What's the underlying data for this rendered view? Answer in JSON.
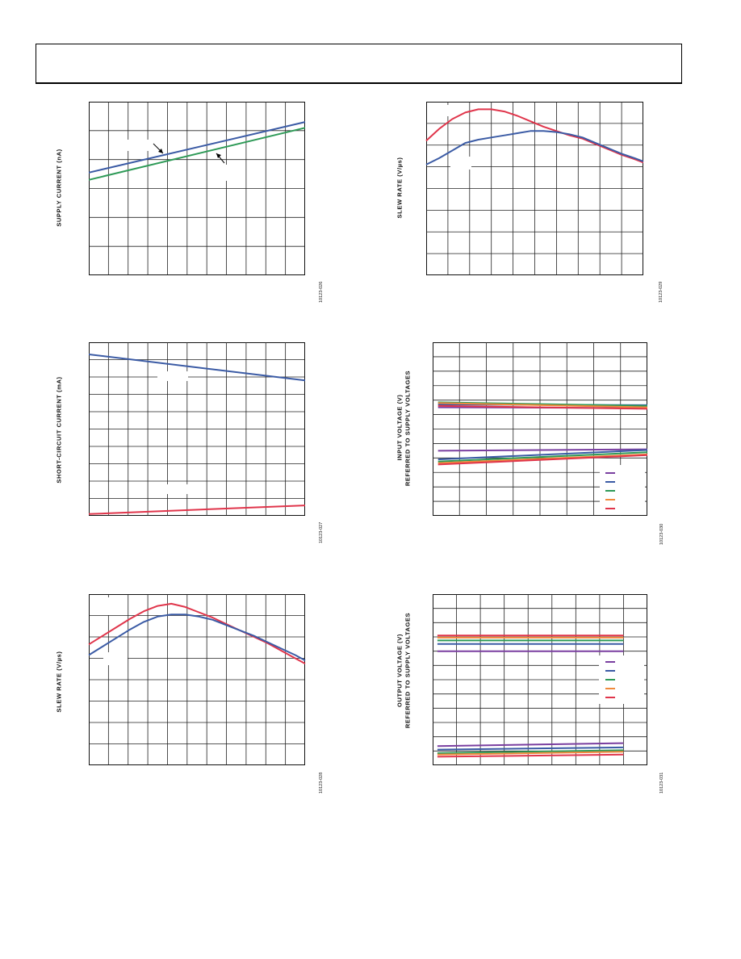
{
  "chart_data": [
    {
      "id": "c1",
      "type": "line",
      "ylabel": "SUPPLY CURRENT (nA)",
      "figure_id": "10123-026",
      "xlim": [
        0,
        11
      ],
      "ylim": [
        0,
        6
      ],
      "series": [
        {
          "color": "#3b5ba5",
          "x": [
            0,
            11
          ],
          "y": [
            3.55,
            5.3
          ]
        },
        {
          "color": "#2e9a57",
          "x": [
            0,
            11
          ],
          "y": [
            3.3,
            5.1
          ]
        }
      ]
    },
    {
      "id": "c2",
      "type": "line",
      "ylabel": "SLEW RATE (V/µs)",
      "figure_id": "10123-029",
      "xlim": [
        0,
        10
      ],
      "ylim": [
        0,
        8
      ],
      "series": [
        {
          "color": "#e0354b",
          "x": [
            0,
            0.6,
            1.2,
            1.8,
            2.4,
            3,
            3.6,
            4.2,
            4.8,
            5.4,
            6,
            6.6,
            7.2,
            7.8,
            8.4,
            9,
            9.6,
            10
          ],
          "y": [
            6.2,
            6.75,
            7.2,
            7.5,
            7.65,
            7.65,
            7.55,
            7.35,
            7.1,
            6.85,
            6.65,
            6.45,
            6.3,
            6.05,
            5.8,
            5.55,
            5.35,
            5.2
          ]
        },
        {
          "color": "#3b5ba5",
          "x": [
            0,
            0.6,
            1.2,
            1.8,
            2.4,
            3,
            3.6,
            4.2,
            4.8,
            5.4,
            6,
            6.6,
            7.2,
            7.8,
            8.4,
            9,
            9.6,
            10
          ],
          "y": [
            5.1,
            5.4,
            5.75,
            6.1,
            6.25,
            6.35,
            6.45,
            6.55,
            6.65,
            6.65,
            6.6,
            6.5,
            6.35,
            6.1,
            5.85,
            5.6,
            5.4,
            5.25
          ]
        }
      ]
    },
    {
      "id": "c3",
      "type": "line",
      "ylabel": "SHORT-CIRCUIT CURRENT (mA)",
      "figure_id": "10123-027",
      "xlim": [
        0,
        11
      ],
      "ylim": [
        0,
        10
      ],
      "series": [
        {
          "color": "#3b5ba5",
          "x": [
            0,
            11
          ],
          "y": [
            9.3,
            7.8
          ]
        },
        {
          "color": "#e0354b",
          "x": [
            0,
            11
          ],
          "y": [
            0.1,
            0.6
          ]
        }
      ]
    },
    {
      "id": "c4",
      "type": "line",
      "ylabel": "INPUT VOLTAGE (V)",
      "ylabel2": "REFERRED TO SUPPLY VOLTAGES",
      "figure_id": "10123-030",
      "xlim": [
        0,
        8
      ],
      "ylim": [
        0,
        12
      ],
      "series": [
        {
          "color": "#7a3fa0",
          "x": [
            0.2,
            8
          ],
          "y": [
            7.5,
            7.45
          ]
        },
        {
          "color": "#3b5ba5",
          "x": [
            0.2,
            8
          ],
          "y": [
            7.7,
            7.65
          ]
        },
        {
          "color": "#2e9a57",
          "x": [
            0.2,
            8
          ],
          "y": [
            7.85,
            7.6
          ]
        },
        {
          "color": "#f08a3c",
          "x": [
            0.2,
            8
          ],
          "y": [
            7.8,
            7.5
          ]
        },
        {
          "color": "#e0354b",
          "x": [
            0.2,
            8
          ],
          "y": [
            7.6,
            7.4
          ]
        },
        {
          "color": "#7a3fa0",
          "x": [
            0.2,
            8
          ],
          "y": [
            4.5,
            4.6
          ]
        },
        {
          "color": "#3b5ba5",
          "x": [
            0.2,
            8
          ],
          "y": [
            3.9,
            4.55
          ]
        },
        {
          "color": "#2e9a57",
          "x": [
            0.2,
            8
          ],
          "y": [
            3.75,
            4.4
          ]
        },
        {
          "color": "#f08a3c",
          "x": [
            0.2,
            8
          ],
          "y": [
            3.65,
            4.25
          ]
        },
        {
          "color": "#e0354b",
          "x": [
            0.2,
            8
          ],
          "y": [
            3.55,
            4.2
          ]
        }
      ],
      "legend_colors": [
        "#7a3fa0",
        "#3b5ba5",
        "#2e9a57",
        "#f08a3c",
        "#e0354b"
      ]
    },
    {
      "id": "c5",
      "type": "line",
      "ylabel": "SLEW RATE (V/µs)",
      "figure_id": "10123-028",
      "xlim": [
        0,
        11
      ],
      "ylim": [
        0,
        8
      ],
      "series": [
        {
          "color": "#e0354b",
          "x": [
            0,
            0.7,
            1.4,
            2.1,
            2.8,
            3.5,
            4.2,
            4.9,
            5.6,
            6.3,
            7,
            7.7,
            8.4,
            9.1,
            9.8,
            10.5,
            11
          ],
          "y": [
            5.65,
            6.05,
            6.45,
            6.85,
            7.2,
            7.45,
            7.55,
            7.4,
            7.15,
            6.9,
            6.6,
            6.3,
            6,
            5.7,
            5.35,
            5,
            4.75
          ]
        },
        {
          "color": "#3b5ba5",
          "x": [
            0,
            0.7,
            1.4,
            2.1,
            2.8,
            3.5,
            4.2,
            4.9,
            5.6,
            6.3,
            7,
            7.7,
            8.4,
            9.1,
            9.8,
            10.5,
            11
          ],
          "y": [
            5.15,
            5.55,
            5.95,
            6.35,
            6.7,
            6.95,
            7.05,
            7.05,
            6.95,
            6.8,
            6.55,
            6.3,
            6.05,
            5.75,
            5.45,
            5.15,
            4.9
          ]
        }
      ]
    },
    {
      "id": "c6",
      "type": "line",
      "ylabel": "OUTPUT VOLTAGE (V)",
      "ylabel2": "REFERRED TO SUPPLY VOLTAGES",
      "figure_id": "10123-031",
      "xlim": [
        0,
        9
      ],
      "ylim": [
        0,
        12
      ],
      "series": [
        {
          "color": "#e0354b",
          "x": [
            0.2,
            8
          ],
          "y": [
            9.1,
            9.1
          ]
        },
        {
          "color": "#f08a3c",
          "x": [
            0.2,
            8
          ],
          "y": [
            8.95,
            8.95
          ]
        },
        {
          "color": "#2e9a57",
          "x": [
            0.2,
            8
          ],
          "y": [
            8.75,
            8.75
          ]
        },
        {
          "color": "#3b5ba5",
          "x": [
            0.2,
            8
          ],
          "y": [
            8.5,
            8.5
          ]
        },
        {
          "color": "#7a3fa0",
          "x": [
            0.2,
            8
          ],
          "y": [
            8.0,
            8.0
          ]
        },
        {
          "color": "#7a3fa0",
          "x": [
            0.2,
            8
          ],
          "y": [
            1.35,
            1.55
          ]
        },
        {
          "color": "#3b5ba5",
          "x": [
            0.2,
            8
          ],
          "y": [
            1.1,
            1.25
          ]
        },
        {
          "color": "#2e9a57",
          "x": [
            0.2,
            8
          ],
          "y": [
            0.85,
            1.05
          ]
        },
        {
          "color": "#f08a3c",
          "x": [
            0.2,
            8
          ],
          "y": [
            0.75,
            0.95
          ]
        },
        {
          "color": "#e0354b",
          "x": [
            0.2,
            8
          ],
          "y": [
            0.6,
            0.75
          ]
        }
      ],
      "legend_colors": [
        "#7a3fa0",
        "#3b5ba5",
        "#2e9a57",
        "#f08a3c",
        "#e0354b"
      ]
    }
  ]
}
